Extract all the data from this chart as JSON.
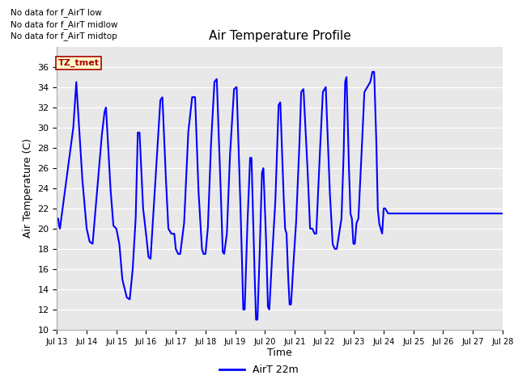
{
  "title": "Air Temperature Profile",
  "xlabel": "Time",
  "ylabel": "Air Temperature (C)",
  "ylim": [
    10,
    38
  ],
  "yticks": [
    10,
    12,
    14,
    16,
    18,
    20,
    22,
    24,
    26,
    28,
    30,
    32,
    34,
    36
  ],
  "line_color": "blue",
  "line_width": 1.5,
  "bg_color": "#e8e8e8",
  "legend_label": "AirT 22m",
  "legend_line_color": "blue",
  "annotations_text": [
    "No data for f_AirT low",
    "No data for f_AirT midlow",
    "No data for f_AirT midtop"
  ],
  "tz_label": "TZ_tmet",
  "x_tick_labels": [
    "Jul 13",
    "Jul 14",
    "Jul 15",
    "Jul 16",
    "Jul 17",
    "Jul 18",
    "Jul 19",
    "Jul 20",
    "Jul 21",
    "Jul 22",
    "Jul 23",
    "Jul 24",
    "Jul 25",
    "Jul 26",
    "Jul 27",
    "Jul 28"
  ],
  "control_points": [
    [
      0.0,
      21.0
    ],
    [
      0.04,
      21.0
    ],
    [
      0.07,
      20.3
    ],
    [
      0.1,
      20.0
    ],
    [
      0.55,
      30.0
    ],
    [
      0.65,
      34.5
    ],
    [
      0.85,
      25.0
    ],
    [
      1.0,
      20.0
    ],
    [
      1.1,
      18.7
    ],
    [
      1.2,
      18.5
    ],
    [
      1.5,
      29.0
    ],
    [
      1.6,
      31.5
    ],
    [
      1.65,
      32.0
    ],
    [
      1.8,
      24.0
    ],
    [
      1.9,
      20.3
    ],
    [
      2.0,
      20.0
    ],
    [
      2.1,
      18.5
    ],
    [
      2.2,
      15.0
    ],
    [
      2.35,
      13.2
    ],
    [
      2.45,
      13.0
    ],
    [
      2.55,
      16.0
    ],
    [
      2.65,
      21.0
    ],
    [
      2.72,
      29.5
    ],
    [
      2.78,
      29.5
    ],
    [
      2.9,
      22.0
    ],
    [
      3.0,
      19.5
    ],
    [
      3.08,
      17.2
    ],
    [
      3.15,
      17.0
    ],
    [
      3.3,
      24.0
    ],
    [
      3.48,
      32.7
    ],
    [
      3.55,
      33.0
    ],
    [
      3.65,
      26.0
    ],
    [
      3.75,
      20.0
    ],
    [
      3.85,
      19.5
    ],
    [
      3.95,
      19.5
    ],
    [
      4.0,
      18.0
    ],
    [
      4.08,
      17.5
    ],
    [
      4.15,
      17.5
    ],
    [
      4.28,
      20.5
    ],
    [
      4.42,
      29.5
    ],
    [
      4.55,
      33.0
    ],
    [
      4.65,
      33.0
    ],
    [
      4.76,
      24.0
    ],
    [
      4.88,
      18.0
    ],
    [
      4.93,
      17.5
    ],
    [
      5.0,
      17.5
    ],
    [
      5.08,
      20.0
    ],
    [
      5.18,
      28.0
    ],
    [
      5.3,
      34.5
    ],
    [
      5.38,
      34.8
    ],
    [
      5.5,
      25.0
    ],
    [
      5.58,
      17.7
    ],
    [
      5.63,
      17.5
    ],
    [
      5.72,
      19.5
    ],
    [
      5.82,
      27.0
    ],
    [
      5.96,
      33.8
    ],
    [
      6.05,
      34.0
    ],
    [
      6.15,
      25.0
    ],
    [
      6.22,
      18.0
    ],
    [
      6.27,
      12.0
    ],
    [
      6.32,
      12.0
    ],
    [
      6.4,
      19.5
    ],
    [
      6.5,
      27.0
    ],
    [
      6.55,
      27.0
    ],
    [
      6.63,
      18.0
    ],
    [
      6.7,
      11.0
    ],
    [
      6.75,
      11.0
    ],
    [
      6.82,
      17.0
    ],
    [
      6.9,
      25.5
    ],
    [
      6.95,
      26.0
    ],
    [
      7.04,
      19.0
    ],
    [
      7.1,
      12.3
    ],
    [
      7.15,
      12.0
    ],
    [
      7.22,
      16.0
    ],
    [
      7.35,
      22.5
    ],
    [
      7.46,
      32.2
    ],
    [
      7.52,
      32.5
    ],
    [
      7.62,
      24.0
    ],
    [
      7.68,
      20.0
    ],
    [
      7.73,
      19.5
    ],
    [
      7.78,
      15.5
    ],
    [
      7.83,
      12.5
    ],
    [
      7.88,
      12.5
    ],
    [
      7.96,
      16.5
    ],
    [
      8.05,
      20.5
    ],
    [
      8.16,
      28.0
    ],
    [
      8.22,
      33.5
    ],
    [
      8.3,
      33.8
    ],
    [
      8.42,
      27.0
    ],
    [
      8.52,
      20.0
    ],
    [
      8.6,
      20.0
    ],
    [
      8.67,
      19.5
    ],
    [
      8.73,
      19.5
    ],
    [
      8.82,
      25.5
    ],
    [
      8.95,
      33.5
    ],
    [
      9.05,
      34.0
    ],
    [
      9.18,
      24.0
    ],
    [
      9.28,
      18.5
    ],
    [
      9.35,
      18.0
    ],
    [
      9.42,
      18.0
    ],
    [
      9.5,
      19.5
    ],
    [
      9.58,
      21.0
    ],
    [
      9.65,
      27.0
    ],
    [
      9.7,
      34.5
    ],
    [
      9.75,
      35.0
    ],
    [
      9.82,
      27.0
    ],
    [
      9.88,
      21.5
    ],
    [
      9.93,
      21.0
    ],
    [
      9.98,
      18.5
    ],
    [
      10.03,
      18.5
    ],
    [
      10.08,
      20.5
    ],
    [
      10.15,
      21.0
    ],
    [
      10.25,
      27.0
    ],
    [
      10.35,
      33.5
    ],
    [
      10.45,
      34.0
    ],
    [
      10.55,
      34.5
    ],
    [
      10.62,
      35.5
    ],
    [
      10.68,
      35.5
    ],
    [
      10.75,
      29.0
    ],
    [
      10.8,
      22.0
    ],
    [
      10.85,
      20.5
    ],
    [
      10.9,
      20.0
    ],
    [
      10.95,
      19.5
    ],
    [
      11.0,
      22.0
    ],
    [
      11.05,
      22.0
    ],
    [
      11.15,
      21.5
    ],
    [
      15.0,
      21.5
    ]
  ]
}
